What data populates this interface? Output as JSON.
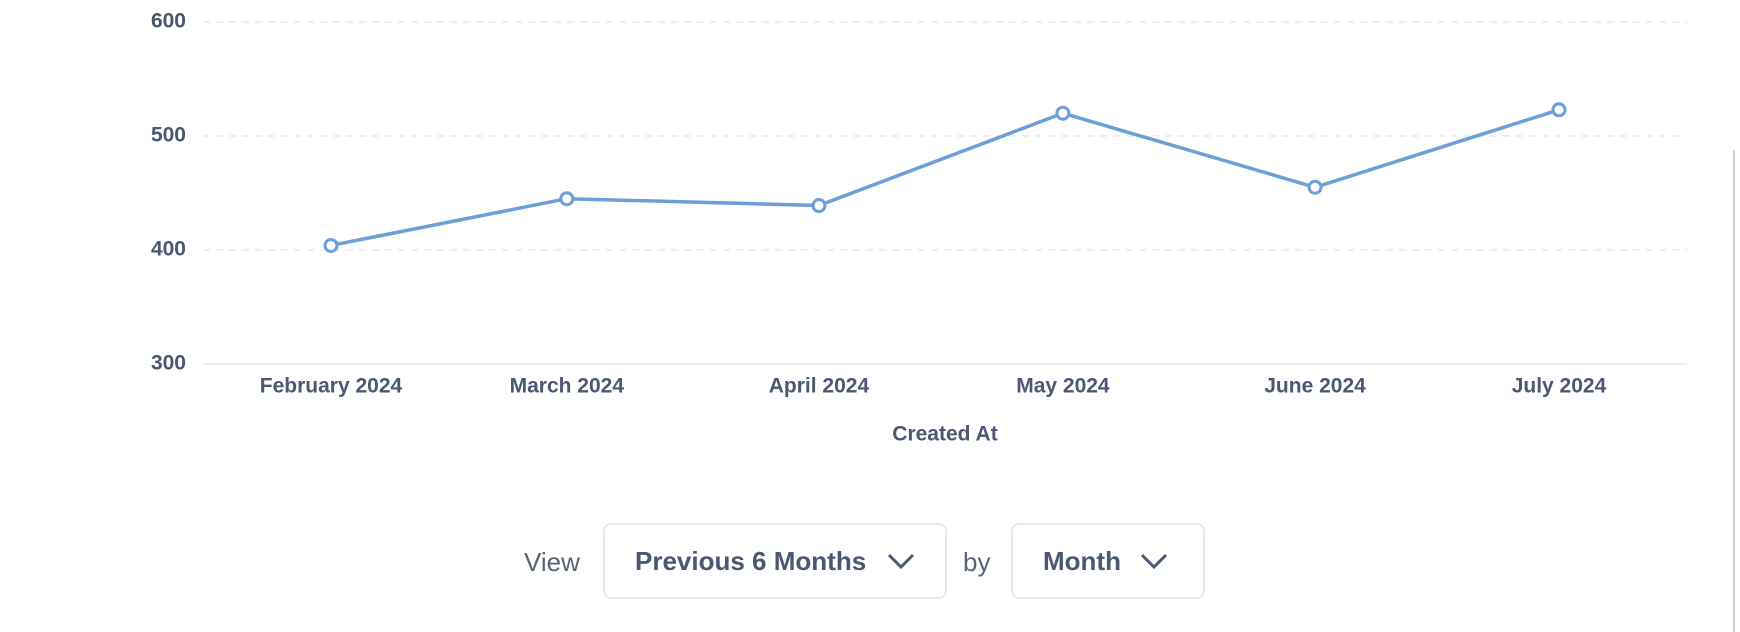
{
  "chart_data": {
    "type": "line",
    "categories": [
      "February 2024",
      "March 2024",
      "April 2024",
      "May 2024",
      "June 2024",
      "July 2024"
    ],
    "values": [
      404,
      445,
      439,
      520,
      455,
      523
    ],
    "color": "#6b9fd6",
    "xlabel": "Created At",
    "ylim": [
      300,
      600
    ],
    "yticks": [
      300,
      400,
      500,
      600
    ],
    "grid": true
  },
  "controls": {
    "view_label": "View",
    "range": "Previous 6 Months",
    "by_label": "by",
    "granularity": "Month"
  }
}
